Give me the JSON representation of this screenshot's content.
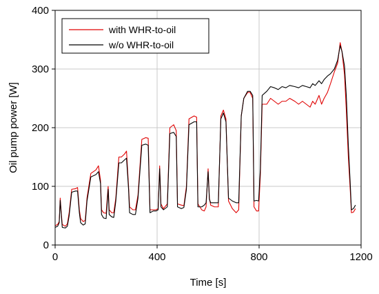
{
  "chart_data": {
    "type": "line",
    "title": "",
    "xlabel": "Time [s]",
    "ylabel": "Oil pump power [W]",
    "xlim": [
      0,
      1200
    ],
    "ylim": [
      0,
      400
    ],
    "x_ticks": [
      0,
      400,
      800,
      1200
    ],
    "y_ticks": [
      0,
      100,
      200,
      300,
      400
    ],
    "grid": true,
    "legend_position": "top-left",
    "series": [
      {
        "name": "with WHR-to-oil",
        "color": "#e00000",
        "points": [
          [
            0,
            33
          ],
          [
            10,
            35
          ],
          [
            16,
            40
          ],
          [
            20,
            80
          ],
          [
            24,
            55
          ],
          [
            28,
            35
          ],
          [
            40,
            32
          ],
          [
            48,
            36
          ],
          [
            55,
            55
          ],
          [
            65,
            95
          ],
          [
            80,
            96
          ],
          [
            88,
            98
          ],
          [
            95,
            60
          ],
          [
            100,
            45
          ],
          [
            110,
            40
          ],
          [
            118,
            42
          ],
          [
            125,
            80
          ],
          [
            140,
            122
          ],
          [
            160,
            128
          ],
          [
            170,
            135
          ],
          [
            178,
            110
          ],
          [
            182,
            60
          ],
          [
            190,
            55
          ],
          [
            200,
            54
          ],
          [
            208,
            100
          ],
          [
            212,
            60
          ],
          [
            222,
            55
          ],
          [
            230,
            55
          ],
          [
            238,
            80
          ],
          [
            250,
            150
          ],
          [
            260,
            150
          ],
          [
            272,
            155
          ],
          [
            280,
            160
          ],
          [
            288,
            100
          ],
          [
            292,
            65
          ],
          [
            305,
            60
          ],
          [
            315,
            60
          ],
          [
            325,
            85
          ],
          [
            340,
            180
          ],
          [
            355,
            183
          ],
          [
            365,
            182
          ],
          [
            372,
            60
          ],
          [
            385,
            60
          ],
          [
            396,
            60
          ],
          [
            404,
            62
          ],
          [
            410,
            135
          ],
          [
            415,
            70
          ],
          [
            425,
            62
          ],
          [
            440,
            70
          ],
          [
            450,
            200
          ],
          [
            465,
            205
          ],
          [
            475,
            195
          ],
          [
            480,
            70
          ],
          [
            495,
            68
          ],
          [
            505,
            67
          ],
          [
            515,
            100
          ],
          [
            525,
            215
          ],
          [
            545,
            220
          ],
          [
            555,
            218
          ],
          [
            560,
            70
          ],
          [
            575,
            60
          ],
          [
            585,
            58
          ],
          [
            592,
            65
          ],
          [
            600,
            130
          ],
          [
            605,
            80
          ],
          [
            610,
            68
          ],
          [
            625,
            65
          ],
          [
            640,
            65
          ],
          [
            650,
            220
          ],
          [
            660,
            230
          ],
          [
            670,
            215
          ],
          [
            680,
            75
          ],
          [
            695,
            62
          ],
          [
            710,
            55
          ],
          [
            720,
            60
          ],
          [
            730,
            220
          ],
          [
            740,
            250
          ],
          [
            755,
            260
          ],
          [
            765,
            260
          ],
          [
            775,
            250
          ],
          [
            780,
            65
          ],
          [
            790,
            58
          ],
          [
            798,
            58
          ],
          [
            805,
            120
          ],
          [
            812,
            240
          ],
          [
            830,
            240
          ],
          [
            845,
            250
          ],
          [
            860,
            245
          ],
          [
            875,
            240
          ],
          [
            890,
            245
          ],
          [
            905,
            245
          ],
          [
            920,
            250
          ],
          [
            940,
            245
          ],
          [
            955,
            240
          ],
          [
            970,
            245
          ],
          [
            985,
            240
          ],
          [
            1000,
            235
          ],
          [
            1010,
            245
          ],
          [
            1020,
            240
          ],
          [
            1035,
            255
          ],
          [
            1045,
            240
          ],
          [
            1055,
            250
          ],
          [
            1068,
            260
          ],
          [
            1080,
            275
          ],
          [
            1095,
            295
          ],
          [
            1108,
            310
          ],
          [
            1118,
            345
          ],
          [
            1125,
            330
          ],
          [
            1135,
            290
          ],
          [
            1142,
            230
          ],
          [
            1150,
            150
          ],
          [
            1158,
            90
          ],
          [
            1162,
            55
          ],
          [
            1170,
            56
          ],
          [
            1178,
            62
          ]
        ]
      },
      {
        "name": "w/o WHR-to-oil",
        "color": "#000000",
        "points": [
          [
            0,
            30
          ],
          [
            10,
            32
          ],
          [
            16,
            38
          ],
          [
            20,
            76
          ],
          [
            24,
            52
          ],
          [
            28,
            30
          ],
          [
            40,
            29
          ],
          [
            48,
            32
          ],
          [
            55,
            50
          ],
          [
            65,
            90
          ],
          [
            80,
            92
          ],
          [
            88,
            92
          ],
          [
            95,
            55
          ],
          [
            100,
            38
          ],
          [
            110,
            34
          ],
          [
            118,
            36
          ],
          [
            125,
            75
          ],
          [
            140,
            116
          ],
          [
            160,
            120
          ],
          [
            170,
            125
          ],
          [
            178,
            105
          ],
          [
            182,
            52
          ],
          [
            190,
            46
          ],
          [
            200,
            45
          ],
          [
            208,
            95
          ],
          [
            212,
            52
          ],
          [
            222,
            48
          ],
          [
            230,
            47
          ],
          [
            238,
            75
          ],
          [
            250,
            140
          ],
          [
            260,
            140
          ],
          [
            272,
            145
          ],
          [
            280,
            148
          ],
          [
            288,
            95
          ],
          [
            292,
            55
          ],
          [
            305,
            52
          ],
          [
            315,
            52
          ],
          [
            325,
            80
          ],
          [
            340,
            170
          ],
          [
            355,
            172
          ],
          [
            365,
            170
          ],
          [
            372,
            55
          ],
          [
            385,
            58
          ],
          [
            396,
            58
          ],
          [
            404,
            60
          ],
          [
            410,
            130
          ],
          [
            415,
            65
          ],
          [
            425,
            60
          ],
          [
            440,
            65
          ],
          [
            450,
            190
          ],
          [
            465,
            192
          ],
          [
            475,
            185
          ],
          [
            480,
            65
          ],
          [
            495,
            62
          ],
          [
            505,
            64
          ],
          [
            515,
            95
          ],
          [
            525,
            205
          ],
          [
            545,
            210
          ],
          [
            555,
            210
          ],
          [
            560,
            65
          ],
          [
            575,
            65
          ],
          [
            585,
            68
          ],
          [
            592,
            72
          ],
          [
            600,
            125
          ],
          [
            605,
            78
          ],
          [
            610,
            72
          ],
          [
            625,
            72
          ],
          [
            640,
            72
          ],
          [
            650,
            215
          ],
          [
            660,
            225
          ],
          [
            670,
            210
          ],
          [
            680,
            80
          ],
          [
            695,
            75
          ],
          [
            710,
            72
          ],
          [
            720,
            72
          ],
          [
            730,
            220
          ],
          [
            740,
            250
          ],
          [
            755,
            262
          ],
          [
            765,
            262
          ],
          [
            775,
            255
          ],
          [
            780,
            75
          ],
          [
            790,
            76
          ],
          [
            798,
            75
          ],
          [
            805,
            130
          ],
          [
            812,
            255
          ],
          [
            830,
            262
          ],
          [
            845,
            270
          ],
          [
            860,
            268
          ],
          [
            875,
            265
          ],
          [
            890,
            270
          ],
          [
            905,
            268
          ],
          [
            920,
            272
          ],
          [
            940,
            270
          ],
          [
            955,
            268
          ],
          [
            970,
            272
          ],
          [
            985,
            270
          ],
          [
            1000,
            268
          ],
          [
            1010,
            275
          ],
          [
            1020,
            272
          ],
          [
            1035,
            280
          ],
          [
            1045,
            275
          ],
          [
            1055,
            282
          ],
          [
            1068,
            288
          ],
          [
            1080,
            292
          ],
          [
            1095,
            300
          ],
          [
            1108,
            315
          ],
          [
            1118,
            340
          ],
          [
            1125,
            330
          ],
          [
            1135,
            305
          ],
          [
            1142,
            255
          ],
          [
            1150,
            170
          ],
          [
            1158,
            100
          ],
          [
            1162,
            60
          ],
          [
            1170,
            62
          ],
          [
            1178,
            68
          ]
        ]
      }
    ]
  }
}
